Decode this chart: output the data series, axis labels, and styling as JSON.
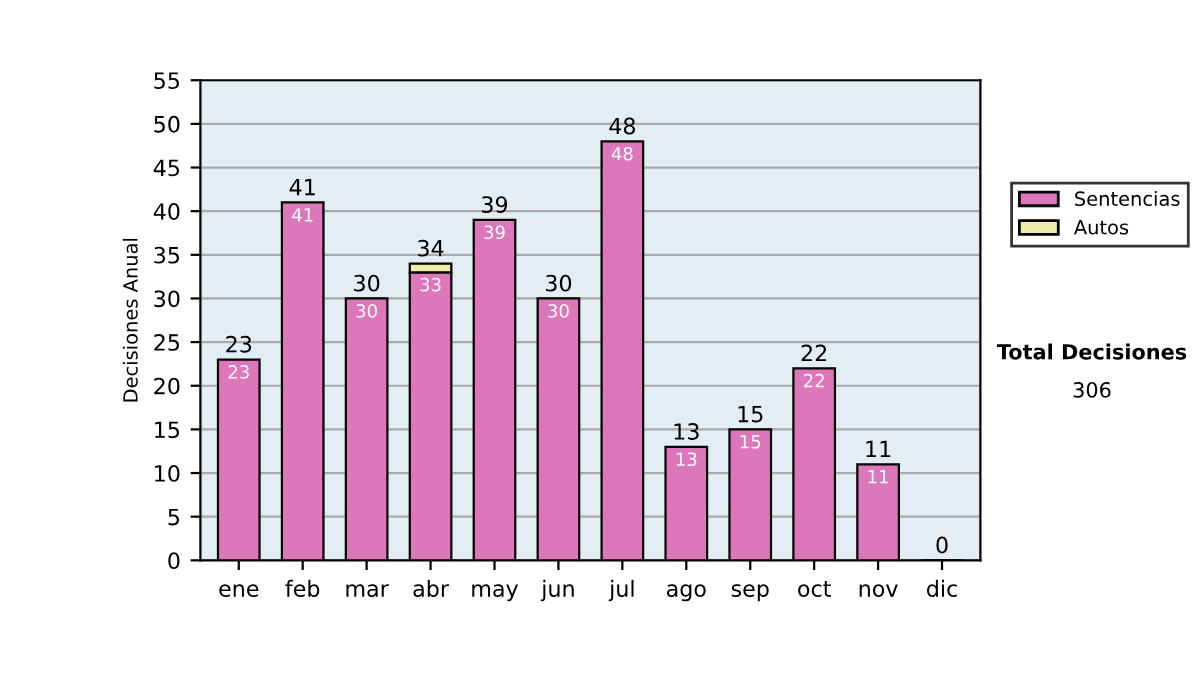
{
  "chart_data": {
    "type": "bar",
    "stacked": true,
    "ylabel": "Decisiones Anual",
    "categories": [
      "ene",
      "feb",
      "mar",
      "abr",
      "may",
      "jun",
      "jul",
      "ago",
      "sep",
      "oct",
      "nov",
      "dic"
    ],
    "series": [
      {
        "name": "Sentencias",
        "color": "#dd77bb",
        "values": [
          23,
          41,
          30,
          33,
          39,
          30,
          48,
          13,
          15,
          22,
          11,
          0
        ],
        "value_labels": [
          "23",
          "41",
          "30",
          "33",
          "39",
          "30",
          "48",
          "13",
          "15",
          "22",
          "11",
          null
        ]
      },
      {
        "name": "Autos",
        "color": "#eeeeaa",
        "values": [
          null,
          null,
          null,
          1,
          null,
          null,
          null,
          null,
          null,
          null,
          null,
          null
        ]
      }
    ],
    "totals": [
      "23",
      "41",
      "30",
      "34",
      "39",
      "30",
      "48",
      "13",
      "15",
      "22",
      "11",
      "0"
    ],
    "ylim": [
      0,
      55
    ],
    "yticks": [
      0,
      5,
      10,
      15,
      20,
      25,
      30,
      35,
      40,
      45,
      50,
      55
    ],
    "grid": "y",
    "legend": "right",
    "annotations": [
      "Total Decisiones",
      "306"
    ]
  }
}
